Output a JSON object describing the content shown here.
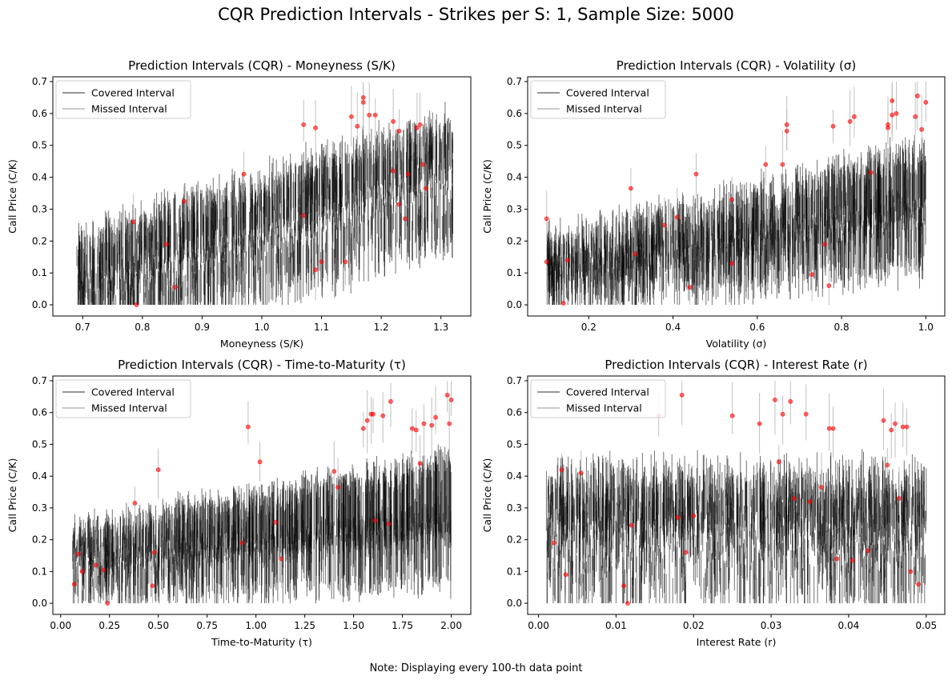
{
  "figure": {
    "suptitle": "CQR Prediction Intervals - Strikes per S: 1, Sample Size: 5000",
    "footnote": "Note: Displaying every 100-th data point"
  },
  "chart_data": [
    {
      "type": "errorbar-interval",
      "title": "Prediction Intervals (CQR) - Moneyness (S/K)",
      "xlabel": "Moneyness (S/K)",
      "ylabel": "Call Price (C/K)",
      "xlim": [
        0.65,
        1.35
      ],
      "ylim": [
        -0.035,
        0.715
      ],
      "xticks": [
        0.7,
        0.8,
        0.9,
        1.0,
        1.1,
        1.2,
        1.3
      ],
      "xtick_labels": [
        "0.7",
        "0.8",
        "0.9",
        "1.0",
        "1.1",
        "1.2",
        "1.3"
      ],
      "yticks": [
        0.0,
        0.1,
        0.2,
        0.3,
        0.4,
        0.5,
        0.6,
        0.7
      ],
      "ytick_labels": [
        "0.0",
        "0.1",
        "0.2",
        "0.3",
        "0.4",
        "0.5",
        "0.6",
        "0.7"
      ],
      "legend": {
        "position": "upper-left",
        "entries": [
          "Covered Interval",
          "Missed Interval"
        ]
      },
      "series": [
        {
          "name": "Covered Interval",
          "color": "#000000",
          "alpha": 0.55
        },
        {
          "name": "Missed Interval",
          "color": "#b0b0b0",
          "alpha": 0.8
        }
      ],
      "point_marker_color": "#ff0000",
      "pattern": "moneyness",
      "missed_points": [
        [
          0.79,
          0.0
        ],
        [
          0.785,
          0.26
        ],
        [
          0.84,
          0.19
        ],
        [
          0.855,
          0.055
        ],
        [
          0.87,
          0.325
        ],
        [
          0.97,
          0.41
        ],
        [
          1.07,
          0.28
        ],
        [
          1.07,
          0.565
        ],
        [
          1.09,
          0.555
        ],
        [
          1.09,
          0.11
        ],
        [
          1.1,
          0.135
        ],
        [
          1.14,
          0.135
        ],
        [
          1.15,
          0.59
        ],
        [
          1.16,
          0.56
        ],
        [
          1.17,
          0.65
        ],
        [
          1.17,
          0.635
        ],
        [
          1.18,
          0.595
        ],
        [
          1.19,
          0.595
        ],
        [
          1.22,
          0.42
        ],
        [
          1.22,
          0.575
        ],
        [
          1.23,
          0.545
        ],
        [
          1.23,
          0.315
        ],
        [
          1.24,
          0.27
        ],
        [
          1.245,
          0.41
        ],
        [
          1.26,
          0.555
        ],
        [
          1.265,
          0.565
        ],
        [
          1.27,
          0.44
        ],
        [
          1.275,
          0.365
        ]
      ]
    },
    {
      "type": "errorbar-interval",
      "title": "Prediction Intervals (CQR) - Volatility (σ)",
      "xlabel": "Volatility (σ)",
      "ylabel": "Call Price (C/K)",
      "xlim": [
        0.055,
        1.045
      ],
      "ylim": [
        -0.035,
        0.715
      ],
      "xticks": [
        0.2,
        0.4,
        0.6,
        0.8,
        1.0
      ],
      "xtick_labels": [
        "0.2",
        "0.4",
        "0.6",
        "0.8",
        "1.0"
      ],
      "yticks": [
        0.0,
        0.1,
        0.2,
        0.3,
        0.4,
        0.5,
        0.6,
        0.7
      ],
      "ytick_labels": [
        "0.0",
        "0.1",
        "0.2",
        "0.3",
        "0.4",
        "0.5",
        "0.6",
        "0.7"
      ],
      "legend": {
        "position": "upper-left",
        "entries": [
          "Covered Interval",
          "Missed Interval"
        ]
      },
      "series": [
        {
          "name": "Covered Interval",
          "color": "#000000",
          "alpha": 0.55
        },
        {
          "name": "Missed Interval",
          "color": "#b0b0b0",
          "alpha": 0.8
        }
      ],
      "point_marker_color": "#ff0000",
      "pattern": "volatility",
      "missed_points": [
        [
          0.1,
          0.27
        ],
        [
          0.1,
          0.135
        ],
        [
          0.14,
          0.005
        ],
        [
          0.15,
          0.14
        ],
        [
          0.3,
          0.365
        ],
        [
          0.31,
          0.16
        ],
        [
          0.38,
          0.25
        ],
        [
          0.41,
          0.275
        ],
        [
          0.44,
          0.055
        ],
        [
          0.455,
          0.41
        ],
        [
          0.54,
          0.13
        ],
        [
          0.54,
          0.33
        ],
        [
          0.62,
          0.44
        ],
        [
          0.66,
          0.44
        ],
        [
          0.67,
          0.545
        ],
        [
          0.67,
          0.565
        ],
        [
          0.73,
          0.095
        ],
        [
          0.76,
          0.19
        ],
        [
          0.77,
          0.06
        ],
        [
          0.78,
          0.56
        ],
        [
          0.82,
          0.575
        ],
        [
          0.83,
          0.59
        ],
        [
          0.87,
          0.415
        ],
        [
          0.91,
          0.555
        ],
        [
          0.91,
          0.565
        ],
        [
          0.92,
          0.64
        ],
        [
          0.92,
          0.595
        ],
        [
          0.93,
          0.6
        ],
        [
          0.98,
          0.655
        ],
        [
          0.975,
          0.59
        ],
        [
          0.99,
          0.55
        ],
        [
          1.0,
          0.635
        ]
      ]
    },
    {
      "type": "errorbar-interval",
      "title": "Prediction Intervals (CQR) - Time-to-Maturity (τ)",
      "xlabel": "Time-to-Maturity (τ)",
      "ylabel": "Call Price (C/K)",
      "xlim": [
        -0.04,
        2.1
      ],
      "ylim": [
        -0.035,
        0.715
      ],
      "xticks": [
        0.0,
        0.25,
        0.5,
        0.75,
        1.0,
        1.25,
        1.5,
        1.75,
        2.0
      ],
      "xtick_labels": [
        "0.00",
        "0.25",
        "0.50",
        "0.75",
        "1.00",
        "1.25",
        "1.50",
        "1.75",
        "2.00"
      ],
      "yticks": [
        0.0,
        0.1,
        0.2,
        0.3,
        0.4,
        0.5,
        0.6,
        0.7
      ],
      "ytick_labels": [
        "0.0",
        "0.1",
        "0.2",
        "0.3",
        "0.4",
        "0.5",
        "0.6",
        "0.7"
      ],
      "legend": {
        "position": "upper-left",
        "entries": [
          "Covered Interval",
          "Missed Interval"
        ]
      },
      "series": [
        {
          "name": "Covered Interval",
          "color": "#000000",
          "alpha": 0.55
        },
        {
          "name": "Missed Interval",
          "color": "#b0b0b0",
          "alpha": 0.8
        }
      ],
      "point_marker_color": "#ff0000",
      "pattern": "maturity",
      "missed_points": [
        [
          0.07,
          0.06
        ],
        [
          0.09,
          0.155
        ],
        [
          0.11,
          0.1
        ],
        [
          0.18,
          0.12
        ],
        [
          0.22,
          0.105
        ],
        [
          0.24,
          0.0
        ],
        [
          0.38,
          0.315
        ],
        [
          0.47,
          0.055
        ],
        [
          0.48,
          0.16
        ],
        [
          0.5,
          0.42
        ],
        [
          0.93,
          0.19
        ],
        [
          0.96,
          0.555
        ],
        [
          1.02,
          0.445
        ],
        [
          1.1,
          0.255
        ],
        [
          1.13,
          0.14
        ],
        [
          1.4,
          0.415
        ],
        [
          1.42,
          0.365
        ],
        [
          1.55,
          0.55
        ],
        [
          1.57,
          0.575
        ],
        [
          1.59,
          0.595
        ],
        [
          1.6,
          0.595
        ],
        [
          1.61,
          0.26
        ],
        [
          1.65,
          0.59
        ],
        [
          1.68,
          0.25
        ],
        [
          1.69,
          0.635
        ],
        [
          1.8,
          0.55
        ],
        [
          1.82,
          0.545
        ],
        [
          1.84,
          0.44
        ],
        [
          1.86,
          0.565
        ],
        [
          1.9,
          0.56
        ],
        [
          1.92,
          0.585
        ],
        [
          1.98,
          0.655
        ],
        [
          1.99,
          0.565
        ],
        [
          2.0,
          0.64
        ]
      ]
    },
    {
      "type": "errorbar-interval",
      "title": "Prediction Intervals (CQR) - Interest Rate (r)",
      "xlabel": "Interest Rate (r)",
      "ylabel": "Call Price (C/K)",
      "xlim": [
        -0.0014,
        0.0524
      ],
      "ylim": [
        -0.035,
        0.715
      ],
      "xticks": [
        0.0,
        0.01,
        0.02,
        0.03,
        0.04,
        0.05
      ],
      "xtick_labels": [
        "0.00",
        "0.01",
        "0.02",
        "0.03",
        "0.04",
        "0.05"
      ],
      "yticks": [
        0.0,
        0.1,
        0.2,
        0.3,
        0.4,
        0.5,
        0.6,
        0.7
      ],
      "ytick_labels": [
        "0.0",
        "0.1",
        "0.2",
        "0.3",
        "0.4",
        "0.5",
        "0.6",
        "0.7"
      ],
      "legend": {
        "position": "upper-left",
        "entries": [
          "Covered Interval",
          "Missed Interval"
        ]
      },
      "series": [
        {
          "name": "Covered Interval",
          "color": "#000000",
          "alpha": 0.55
        },
        {
          "name": "Missed Interval",
          "color": "#b0b0b0",
          "alpha": 0.8
        }
      ],
      "point_marker_color": "#ff0000",
      "pattern": "rate",
      "missed_points": [
        [
          0.002,
          0.19
        ],
        [
          0.003,
          0.42
        ],
        [
          0.0035,
          0.09
        ],
        [
          0.0055,
          0.41
        ],
        [
          0.011,
          0.055
        ],
        [
          0.0115,
          0.0
        ],
        [
          0.012,
          0.245
        ],
        [
          0.0155,
          0.59
        ],
        [
          0.018,
          0.27
        ],
        [
          0.0185,
          0.655
        ],
        [
          0.019,
          0.16
        ],
        [
          0.02,
          0.275
        ],
        [
          0.025,
          0.59
        ],
        [
          0.0285,
          0.565
        ],
        [
          0.0305,
          0.64
        ],
        [
          0.031,
          0.445
        ],
        [
          0.0315,
          0.595
        ],
        [
          0.0325,
          0.635
        ],
        [
          0.033,
          0.33
        ],
        [
          0.0345,
          0.595
        ],
        [
          0.035,
          0.32
        ],
        [
          0.0365,
          0.365
        ],
        [
          0.0375,
          0.55
        ],
        [
          0.038,
          0.55
        ],
        [
          0.0385,
          0.14
        ],
        [
          0.0405,
          0.135
        ],
        [
          0.0425,
          0.165
        ],
        [
          0.0445,
          0.575
        ],
        [
          0.045,
          0.435
        ],
        [
          0.0455,
          0.545
        ],
        [
          0.046,
          0.565
        ],
        [
          0.0465,
          0.33
        ],
        [
          0.047,
          0.555
        ],
        [
          0.0475,
          0.555
        ],
        [
          0.048,
          0.1
        ],
        [
          0.049,
          0.06
        ]
      ]
    }
  ]
}
